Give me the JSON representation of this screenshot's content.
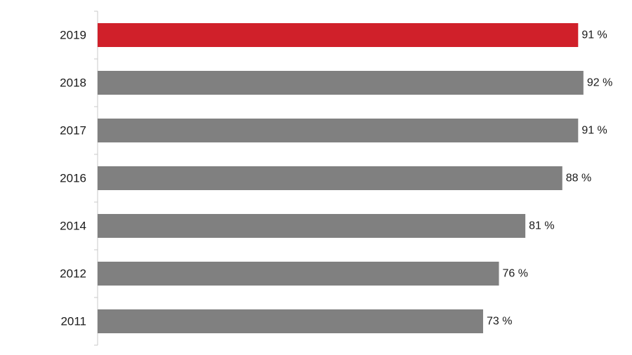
{
  "chart_data": {
    "type": "bar",
    "orientation": "horizontal",
    "categories": [
      "2019",
      "2018",
      "2017",
      "2016",
      "2014",
      "2012",
      "2011"
    ],
    "values": [
      91,
      92,
      91,
      88,
      81,
      76,
      73
    ],
    "value_labels": [
      "91 %",
      "92 %",
      "91 %",
      "88 %",
      "81 %",
      "76 %",
      "73 %"
    ],
    "xlim": [
      0,
      100
    ],
    "title": "",
    "xlabel": "",
    "ylabel": "",
    "grid": false,
    "legend": "none",
    "colors": {
      "highlight": "#d0202a",
      "default": "#808080"
    },
    "highlight_index": 0
  }
}
